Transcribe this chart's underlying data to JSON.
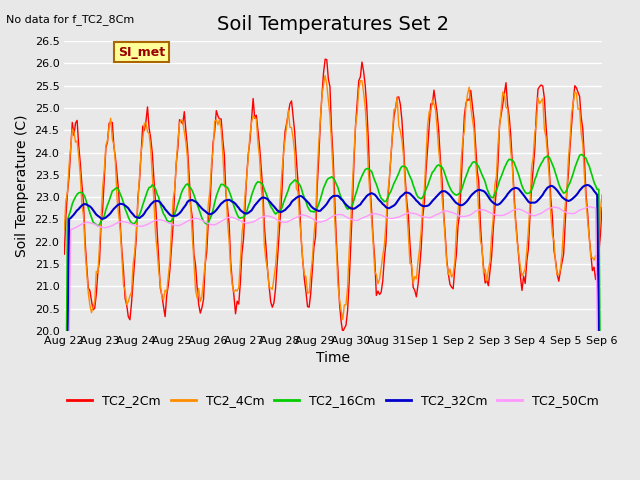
{
  "title": "Soil Temperatures Set 2",
  "xlabel": "Time",
  "ylabel": "Soil Temperature (C)",
  "top_left_text": "No data for f_TC2_8Cm",
  "annotation_text": "SI_met",
  "ylim": [
    20.0,
    26.5
  ],
  "yticks": [
    20.0,
    20.5,
    21.0,
    21.5,
    22.0,
    22.5,
    23.0,
    23.5,
    24.0,
    24.5,
    25.0,
    25.5,
    26.0,
    26.5
  ],
  "xtick_pos": [
    0,
    1,
    2,
    3,
    4,
    5,
    6,
    7,
    8,
    9,
    10,
    11,
    12,
    13,
    14,
    15
  ],
  "xtick_labels": [
    "Aug 22",
    "Aug 23",
    "Aug 24",
    "Aug 25",
    "Aug 26",
    "Aug 27",
    "Aug 28",
    "Aug 29",
    "Aug 30",
    "Aug 31",
    "Sep 1",
    "Sep 2",
    "Sep 3",
    "Sep 4",
    "Sep 5",
    "Sep 6"
  ],
  "series_colors": [
    "#ff0000",
    "#ff8c00",
    "#00cc00",
    "#0000cc",
    "#ff99ff"
  ],
  "series_labels": [
    "TC2_2Cm",
    "TC2_4Cm",
    "TC2_16Cm",
    "TC2_32Cm",
    "TC2_50Cm"
  ],
  "plot_bg_color": "#e8e8e8",
  "annotation_bg": "#ffff99",
  "annotation_border": "#aa6600",
  "annotation_text_color": "#990000",
  "title_fontsize": 14,
  "axis_label_fontsize": 10,
  "tick_fontsize": 8,
  "legend_fontsize": 9,
  "n_points": 337
}
